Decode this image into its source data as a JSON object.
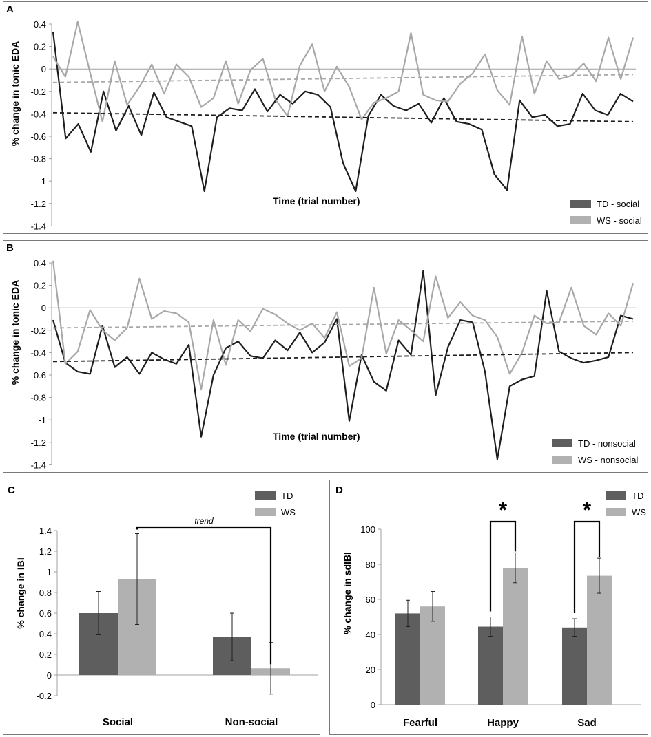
{
  "colors": {
    "td": "#5e5e5e",
    "ws": "#b1b1b1",
    "td_line": "#1e1e1e",
    "ws_line": "#a8a8a8",
    "axis": "#a0a0a0"
  },
  "chart_data": [
    {
      "panel": "A",
      "type": "line",
      "title": "",
      "ylabel": "% change in tonic EDA",
      "xlabel": "Time (trial number)",
      "ylim": [
        -1.4,
        0.4
      ],
      "yticks": [
        "0.4",
        "0.2",
        "0",
        "-0.2",
        "-0.4",
        "-0.6",
        "-0.8",
        "-1",
        "-1.2",
        "-1.4"
      ],
      "ytick_values": [
        0.4,
        0.2,
        0,
        -0.2,
        -0.4,
        -0.6,
        -0.8,
        -1,
        -1.2,
        -1.4
      ],
      "legend": [
        "TD - social",
        "WS - social"
      ],
      "series": [
        {
          "name": "TD - social",
          "values": [
            0.33,
            -0.62,
            -0.49,
            -0.74,
            -0.2,
            -0.55,
            -0.33,
            -0.59,
            -0.21,
            -0.43,
            -0.47,
            -0.51,
            -1.09,
            -0.43,
            -0.35,
            -0.37,
            -0.18,
            -0.38,
            -0.23,
            -0.31,
            -0.2,
            -0.23,
            -0.34,
            -0.84,
            -1.09,
            -0.42,
            -0.23,
            -0.33,
            -0.37,
            -0.31,
            -0.48,
            -0.26,
            -0.47,
            -0.49,
            -0.54,
            -0.94,
            -1.08,
            -0.28,
            -0.43,
            -0.41,
            -0.51,
            -0.49,
            -0.22,
            -0.37,
            -0.41,
            -0.22,
            -0.29
          ]
        },
        {
          "name": "WS - social",
          "values": [
            0.11,
            -0.07,
            0.42,
            -0.03,
            -0.47,
            0.07,
            -0.32,
            -0.16,
            0.04,
            -0.22,
            0.04,
            -0.07,
            -0.34,
            -0.26,
            0.07,
            -0.31,
            -0.01,
            0.09,
            -0.27,
            -0.42,
            0.03,
            0.22,
            -0.2,
            0.02,
            -0.16,
            -0.45,
            -0.3,
            -0.26,
            -0.2,
            0.32,
            -0.23,
            -0.28,
            -0.29,
            -0.13,
            -0.04,
            0.13,
            -0.19,
            -0.32,
            0.29,
            -0.22,
            0.07,
            -0.09,
            -0.06,
            0.05,
            -0.11,
            0.28,
            -0.09,
            0.28
          ]
        },
        {
          "name": "TD - social trend",
          "style": "dashed",
          "values": [
            -0.39,
            -0.47
          ]
        },
        {
          "name": "WS - social trend",
          "style": "dashed",
          "values": [
            -0.12,
            -0.05
          ]
        }
      ]
    },
    {
      "panel": "B",
      "type": "line",
      "title": "",
      "ylabel": "% change in tonic EDA",
      "xlabel": "Time (trial number)",
      "ylim": [
        -1.4,
        0.4
      ],
      "yticks": [
        "0.4",
        "0.2",
        "0",
        "-0.2",
        "-0.4",
        "-0.6",
        "-0.8",
        "-1",
        "-1.2",
        "-1.4"
      ],
      "ytick_values": [
        0.4,
        0.2,
        0,
        -0.2,
        -0.4,
        -0.6,
        -0.8,
        -1,
        -1.2,
        -1.4
      ],
      "legend": [
        "TD - nonsocial",
        "WS - nonsocial"
      ],
      "series": [
        {
          "name": "TD - nonsocial",
          "values": [
            -0.11,
            -0.49,
            -0.57,
            -0.59,
            -0.16,
            -0.53,
            -0.44,
            -0.59,
            -0.4,
            -0.46,
            -0.5,
            -0.33,
            -1.15,
            -0.6,
            -0.36,
            -0.3,
            -0.43,
            -0.45,
            -0.29,
            -0.38,
            -0.22,
            -0.4,
            -0.31,
            -0.1,
            -1.01,
            -0.42,
            -0.66,
            -0.74,
            -0.29,
            -0.42,
            0.33,
            -0.78,
            -0.35,
            -0.11,
            -0.13,
            -0.57,
            -1.35,
            -0.7,
            -0.64,
            -0.61,
            0.15,
            -0.39,
            -0.45,
            -0.49,
            -0.47,
            -0.44,
            -0.07,
            -0.1
          ]
        },
        {
          "name": "WS - nonsocial",
          "values": [
            0.42,
            -0.5,
            -0.39,
            -0.02,
            -0.2,
            -0.29,
            -0.18,
            0.26,
            -0.1,
            -0.03,
            -0.05,
            -0.13,
            -0.73,
            -0.11,
            -0.51,
            -0.11,
            -0.21,
            -0.01,
            -0.06,
            -0.14,
            -0.2,
            -0.14,
            -0.27,
            -0.04,
            -0.52,
            -0.45,
            0.18,
            -0.41,
            -0.11,
            -0.2,
            -0.3,
            0.28,
            -0.09,
            0.05,
            -0.07,
            -0.11,
            -0.26,
            -0.59,
            -0.4,
            -0.07,
            -0.14,
            -0.13,
            0.18,
            -0.16,
            -0.24,
            -0.05,
            -0.16,
            0.22
          ]
        },
        {
          "name": "TD - nonsocial trend",
          "style": "dashed",
          "values": [
            -0.48,
            -0.4
          ]
        },
        {
          "name": "WS - nonsocial trend",
          "style": "dashed",
          "values": [
            -0.18,
            -0.12
          ]
        }
      ]
    },
    {
      "panel": "C",
      "type": "bar",
      "title": "",
      "ylabel": "% change in IBI",
      "xlabel": "",
      "categories": [
        "Social",
        "Non-social"
      ],
      "ylim": [
        -0.2,
        1.4
      ],
      "yticks": [
        "1.4",
        "1.2",
        "1",
        "0.8",
        "0.6",
        "0.4",
        "0.2",
        "0",
        "-0.2"
      ],
      "ytick_values": [
        1.4,
        1.2,
        1,
        0.8,
        0.6,
        0.4,
        0.2,
        0,
        -0.2
      ],
      "legend": [
        "TD",
        "WS"
      ],
      "series": [
        {
          "name": "TD",
          "values": [
            0.6,
            0.37
          ],
          "errors": [
            0.21,
            0.23
          ]
        },
        {
          "name": "WS",
          "values": [
            0.93,
            0.065
          ],
          "errors": [
            0.44,
            0.25
          ]
        }
      ],
      "annotations": [
        {
          "text": "trend",
          "between": "WS Social vs WS Non-social"
        }
      ]
    },
    {
      "panel": "D",
      "type": "bar",
      "title": "",
      "ylabel": "% change in sdIBI",
      "xlabel": "",
      "categories": [
        "Fearful",
        "Happy",
        "Sad"
      ],
      "ylim": [
        0,
        100
      ],
      "yticks": [
        "100",
        "80",
        "60",
        "40",
        "20",
        "0"
      ],
      "ytick_values": [
        100,
        80,
        60,
        40,
        20,
        0
      ],
      "legend": [
        "TD",
        "WS"
      ],
      "series": [
        {
          "name": "TD",
          "values": [
            52,
            44.5,
            44
          ],
          "errors": [
            7.5,
            5.5,
            5
          ]
        },
        {
          "name": "WS",
          "values": [
            56,
            78,
            73.5
          ],
          "errors": [
            8.5,
            8.5,
            10
          ]
        }
      ],
      "annotations": [
        {
          "text": "*",
          "category": "Happy"
        },
        {
          "text": "*",
          "category": "Sad"
        }
      ]
    }
  ]
}
